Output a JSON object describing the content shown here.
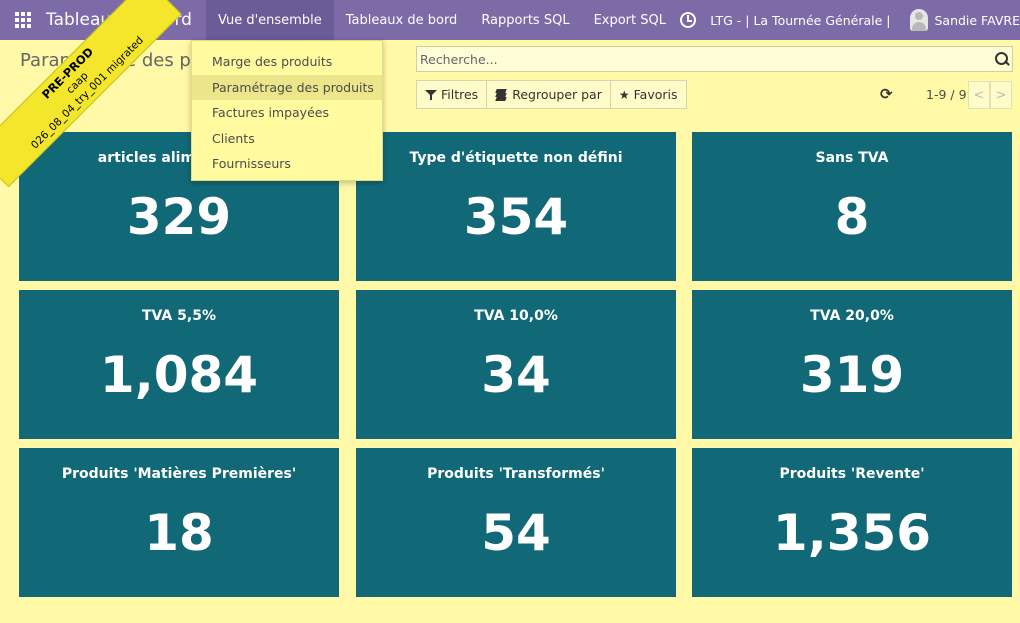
{
  "navbar": {
    "brand": "Tableaux de bord",
    "menu": [
      "Vue d'ensemble",
      "Tableaux de bord",
      "Rapports SQL",
      "Export SQL"
    ],
    "company": "LTG - | La Tournée Générale |",
    "user": "Sandie FAVRE",
    "clock_icon": "clock-icon",
    "apps_icon": "apps-grid-icon"
  },
  "ribbon": {
    "line1": "PRE-PROD",
    "line2": "caap",
    "line3": "026_08_04_try_001 migrated"
  },
  "breadcrumb": "Paramétrage des produits",
  "search": {
    "placeholder": "Recherche..."
  },
  "buttons": {
    "filters": "Filtres",
    "group_by": "Regrouper par",
    "favorites": "Favoris"
  },
  "pager": {
    "value": "1-9 / 9",
    "prev": "<",
    "next": ">"
  },
  "dropdown": [
    "Marge des produits",
    "Paramétrage des produits",
    "Factures impayées",
    "Clients",
    "Fournisseurs"
  ],
  "cards": [
    {
      "title": "articles alimentaires",
      "value": "329"
    },
    {
      "title": "Type d'étiquette non défini",
      "value": "354"
    },
    {
      "title": "Sans TVA",
      "value": "8"
    },
    {
      "title": "TVA 5,5%",
      "value": "1,084"
    },
    {
      "title": "TVA 10,0%",
      "value": "34"
    },
    {
      "title": "TVA 20,0%",
      "value": "319"
    },
    {
      "title": "Produits 'Matières Premières'",
      "value": "18"
    },
    {
      "title": "Produits 'Transformés'",
      "value": "54"
    },
    {
      "title": "Produits 'Revente'",
      "value": "1,356"
    }
  ],
  "colors": {
    "navbar": "#7c6ba6",
    "background": "#fff9a8",
    "card": "#116977",
    "ribbon": "#f3e62b"
  }
}
